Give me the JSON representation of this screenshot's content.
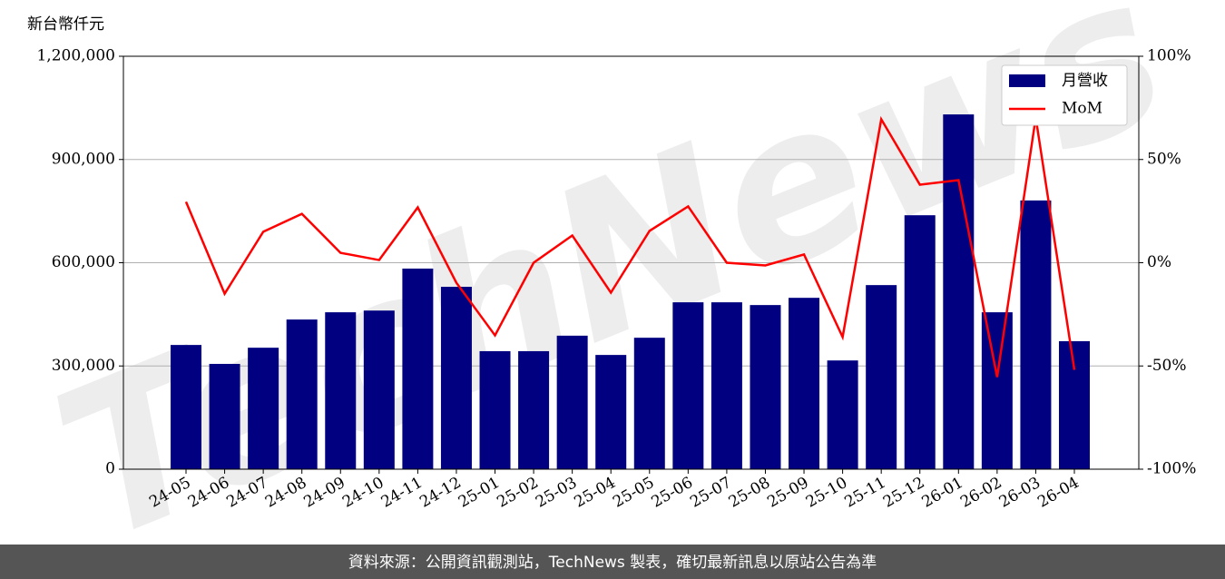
{
  "chart_data": {
    "type": "bar_line",
    "ylabel": "新台幣仟元",
    "watermark": "TechNews",
    "source": "資料來源：公開資訊觀測站，TechNews 製表，確切最新訊息以原站公告為準",
    "categories": [
      "24-05",
      "24-06",
      "24-07",
      "24-08",
      "24-09",
      "24-10",
      "24-11",
      "24-12",
      "25-01",
      "25-02",
      "25-03",
      "25-04",
      "25-05",
      "25-06",
      "25-07",
      "25-08",
      "25-09",
      "25-10",
      "25-11",
      "25-12",
      "26-01",
      "26-02",
      "26-03",
      "26-04"
    ],
    "series": [
      {
        "name": "月營收",
        "type": "bar",
        "color": "#000080",
        "axis": "y",
        "values": [
          361000,
          306000,
          353000,
          435000,
          456000,
          461000,
          583000,
          530000,
          343000,
          343000,
          388000,
          332000,
          382000,
          485000,
          485000,
          477000,
          498000,
          316000,
          535000,
          738000,
          1031000,
          456000,
          781000,
          372000
        ]
      },
      {
        "name": "MoM",
        "type": "line",
        "color": "#ff0000",
        "axis": "y2",
        "values": [
          29.5,
          -15,
          15,
          23.7,
          4.8,
          1.3,
          26.8,
          -9.7,
          -35.2,
          0,
          13.2,
          -14.5,
          15.4,
          27.3,
          0,
          -1.3,
          4,
          -36,
          69.5,
          37.8,
          40,
          -55.4,
          70.3,
          -51.9
        ]
      }
    ],
    "ylim": [
      0,
      1200000
    ],
    "yticks": [
      0,
      {
        "value": 300000,
        "label": "300,000"
      },
      {
        "value": 600000,
        "label": "600,000"
      },
      {
        "value": 900000,
        "label": "900,000"
      },
      {
        "value": 1200000,
        "label": "1,200,000"
      }
    ],
    "y2lim": [
      -100,
      100
    ],
    "y2ticks": [
      {
        "value": -100,
        "label": "-100%"
      },
      {
        "value": -50,
        "label": "-50%"
      },
      {
        "value": 0,
        "label": "0%"
      },
      {
        "value": 50,
        "label": "50%"
      },
      {
        "value": 100,
        "label": "100%"
      }
    ],
    "grid": true,
    "legend": "upper right"
  }
}
